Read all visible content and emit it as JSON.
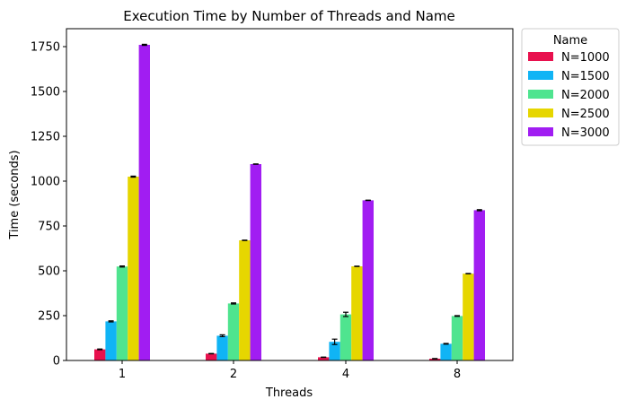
{
  "chart_data": {
    "type": "bar",
    "title": "Execution Time by Number of Threads and Name",
    "xlabel": "Threads",
    "ylabel": "Time (seconds)",
    "categories": [
      "1",
      "2",
      "4",
      "8"
    ],
    "ylim": [
      0,
      1850
    ],
    "yticks": [
      0,
      250,
      500,
      750,
      1000,
      1250,
      1500,
      1750
    ],
    "grid": false,
    "legend": {
      "title": "Name",
      "placement": "outside-top-right"
    },
    "series": [
      {
        "name": "N=1000",
        "color": "#e8114e",
        "values": [
          62,
          38,
          18,
          10
        ],
        "errors": [
          2,
          1,
          1,
          1
        ]
      },
      {
        "name": "N=1500",
        "color": "#10b4f5",
        "values": [
          218,
          138,
          104,
          93
        ],
        "errors": [
          3,
          5,
          15,
          2
        ]
      },
      {
        "name": "N=2000",
        "color": "#4fe48f",
        "values": [
          524,
          318,
          257,
          248
        ],
        "errors": [
          3,
          3,
          12,
          2
        ]
      },
      {
        "name": "N=2500",
        "color": "#e6d600",
        "values": [
          1025,
          670,
          525,
          484
        ],
        "errors": [
          3,
          1,
          1,
          1
        ]
      },
      {
        "name": "N=3000",
        "color": "#a11df2",
        "values": [
          1760,
          1095,
          893,
          838
        ],
        "errors": [
          3,
          1,
          1,
          3
        ]
      }
    ]
  }
}
